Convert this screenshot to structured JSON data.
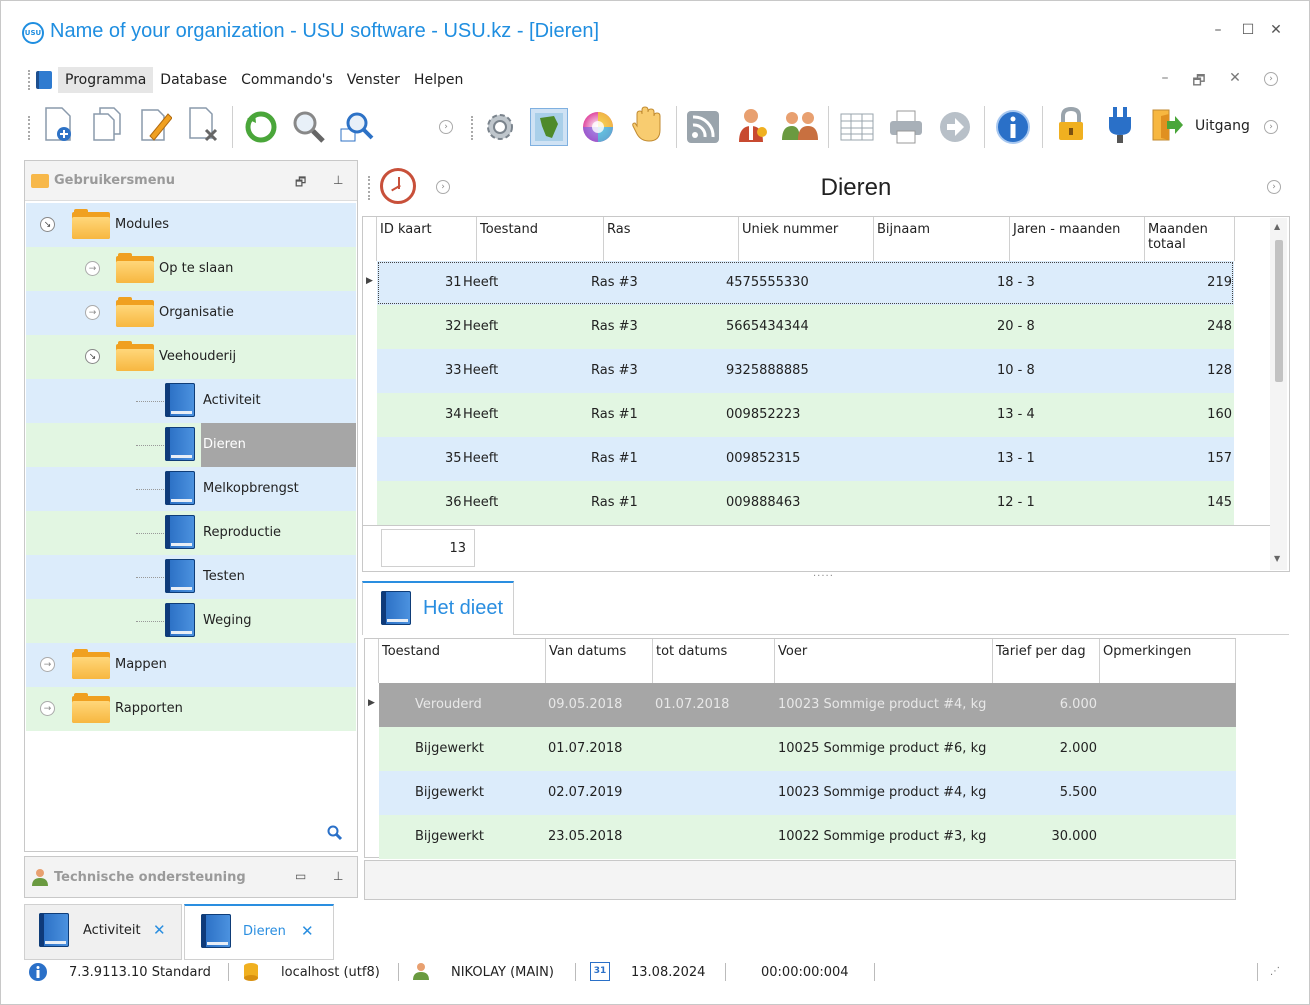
{
  "window": {
    "title": "Name of your organization - USU software - USU.kz - [Dieren]",
    "logo_text": "USU",
    "controls": {
      "minimize": "–",
      "maximize": "☐",
      "close": "✕"
    }
  },
  "menu": {
    "items": [
      "Programma",
      "Database",
      "Commando's",
      "Venster",
      "Helpen"
    ],
    "mdi_controls": {
      "minimize": "–",
      "restore": "🗗",
      "close": "✕"
    }
  },
  "toolbar": {
    "exit_label": "Uitgang",
    "icons": [
      "new-icon",
      "copy-icon",
      "edit-icon",
      "delete-icon",
      "refresh-icon",
      "search-icon",
      "advanced-search-icon",
      "settings-icon",
      "map-icon",
      "color-icon",
      "hand-icon",
      "rss-icon",
      "user-key-icon",
      "users-icon",
      "table-icon",
      "print-icon",
      "forward-icon",
      "info-icon",
      "lock-icon",
      "plug-icon",
      "exit-icon"
    ]
  },
  "sidebar": {
    "title": "Gebruikersmenu",
    "items": [
      {
        "label": "Modules",
        "level": 0,
        "type": "folder",
        "expanded": true
      },
      {
        "label": "Op te slaan",
        "level": 1,
        "type": "folder",
        "expanded": false
      },
      {
        "label": "Organisatie",
        "level": 1,
        "type": "folder",
        "expanded": false
      },
      {
        "label": "Veehouderij",
        "level": 1,
        "type": "folder",
        "expanded": true
      },
      {
        "label": "Activiteit",
        "level": 2,
        "type": "book"
      },
      {
        "label": "Dieren",
        "level": 2,
        "type": "book",
        "selected": true
      },
      {
        "label": "Melkopbrengst",
        "level": 2,
        "type": "book"
      },
      {
        "label": "Reproductie",
        "level": 2,
        "type": "book"
      },
      {
        "label": "Testen",
        "level": 2,
        "type": "book"
      },
      {
        "label": "Weging",
        "level": 2,
        "type": "book"
      },
      {
        "label": "Mappen",
        "level": 0,
        "type": "folder",
        "expanded": false
      },
      {
        "label": "Rapporten",
        "level": 0,
        "type": "folder",
        "expanded": false
      }
    ]
  },
  "support_panel": {
    "title": "Technische ondersteuning"
  },
  "main": {
    "title": "Dieren",
    "animals_table": {
      "columns": [
        "ID kaart",
        "Toestand",
        "Ras",
        "Uniek nummer",
        "Bijnaam",
        "Jaren - maanden",
        "Maanden totaal"
      ],
      "rows": [
        {
          "id": "31",
          "status": "Heeft",
          "breed": "Ras #3",
          "unique": "4575555330",
          "nickname": "",
          "age": "18 - 3",
          "months": "219"
        },
        {
          "id": "32",
          "status": "Heeft",
          "breed": "Ras #3",
          "unique": "5665434344",
          "nickname": "",
          "age": "20 - 8",
          "months": "248"
        },
        {
          "id": "33",
          "status": "Heeft",
          "breed": "Ras #3",
          "unique": "9325888885",
          "nickname": "",
          "age": "10 - 8",
          "months": "128"
        },
        {
          "id": "34",
          "status": "Heeft",
          "breed": "Ras #1",
          "unique": "009852223",
          "nickname": "",
          "age": "13 - 4",
          "months": "160"
        },
        {
          "id": "35",
          "status": "Heeft",
          "breed": "Ras #1",
          "unique": "009852315",
          "nickname": "",
          "age": "13 - 1",
          "months": "157"
        },
        {
          "id": "36",
          "status": "Heeft",
          "breed": "Ras #1",
          "unique": "009888463",
          "nickname": "",
          "age": "12 - 1",
          "months": "145"
        }
      ],
      "footer_count": "13"
    },
    "diet_tab": {
      "label": "Het dieet",
      "columns": [
        "Toestand",
        "Van datums",
        "tot datums",
        "Voer",
        "Tarief per dag",
        "Opmerkingen"
      ],
      "rows": [
        {
          "status": "Verouderd",
          "from": "09.05.2018",
          "to": "01.07.2018",
          "feed": "10023 Sommige product #4, kg",
          "rate": "6.000",
          "notes": ""
        },
        {
          "status": "Bijgewerkt",
          "from": "01.07.2018",
          "to": "",
          "feed": "10025 Sommige product #6, kg",
          "rate": "2.000",
          "notes": ""
        },
        {
          "status": "Bijgewerkt",
          "from": "02.07.2019",
          "to": "",
          "feed": "10023 Sommige product #4, kg",
          "rate": "5.500",
          "notes": ""
        },
        {
          "status": "Bijgewerkt",
          "from": "23.05.2018",
          "to": "",
          "feed": "10022 Sommige product #3, kg",
          "rate": "30.000",
          "notes": ""
        }
      ]
    }
  },
  "open_tabs": [
    {
      "label": "Activiteit",
      "close": "✕",
      "active": false
    },
    {
      "label": "Dieren",
      "close": "✕",
      "active": true
    }
  ],
  "status_bar": {
    "version": "7.3.9113.10 Standard",
    "database": "localhost (utf8)",
    "user": "NIKOLAY (MAIN)",
    "calendar_day": "31",
    "date": "13.08.2024",
    "timer": "00:00:00:004"
  },
  "colors": {
    "accent": "#1f8ee0",
    "row_blue": "#dcecfb",
    "row_green": "#e2f6e2",
    "selected_gray": "#a6a6a6"
  }
}
